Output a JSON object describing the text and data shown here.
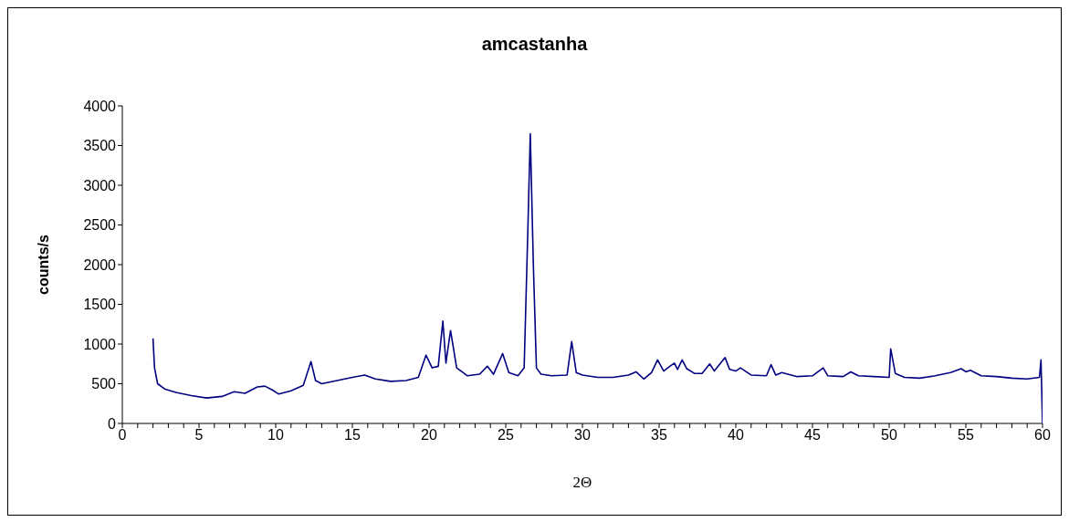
{
  "chart_data": {
    "type": "line",
    "title": "amcastanha",
    "xlabel": "2Θ",
    "ylabel": "counts/s",
    "x": [
      2.0,
      2.1,
      2.3,
      2.8,
      3.5,
      4.5,
      5.5,
      6.5,
      7.3,
      8,
      8.8,
      9.3,
      9.8,
      10.2,
      11,
      11.8,
      12.3,
      12.6,
      13,
      14,
      15,
      15.8,
      16.5,
      17.5,
      18.5,
      19.3,
      19.8,
      20.2,
      20.6,
      20.9,
      21.1,
      21.4,
      21.8,
      22.5,
      23.3,
      23.8,
      24.2,
      24.8,
      25.2,
      25.8,
      26.2,
      26.45,
      26.6,
      26.8,
      27,
      27.3,
      28,
      29,
      29.3,
      29.6,
      30,
      31,
      32,
      33,
      33.5,
      34,
      34.5,
      34.9,
      35.3,
      35.7,
      36,
      36.2,
      36.5,
      36.8,
      37.3,
      37.8,
      38.3,
      38.6,
      39.3,
      39.6,
      40,
      40.3,
      41,
      42,
      42.3,
      42.6,
      43,
      44,
      45,
      45.7,
      46,
      47,
      47.5,
      48,
      49,
      50,
      50.1,
      50.4,
      51,
      52,
      53,
      54,
      54.7,
      55,
      55.3,
      56,
      57,
      58,
      59,
      59.8,
      59.9,
      60
    ],
    "series": [
      {
        "color": "#000080",
        "values": [
          1070,
          700,
          500,
          430,
          390,
          350,
          320,
          340,
          400,
          380,
          460,
          470,
          420,
          370,
          410,
          480,
          780,
          540,
          500,
          540,
          580,
          610,
          560,
          530,
          540,
          580,
          860,
          700,
          720,
          1290,
          760,
          1170,
          700,
          600,
          620,
          720,
          620,
          880,
          640,
          600,
          700,
          2500,
          3650,
          2000,
          700,
          620,
          600,
          610,
          1030,
          640,
          610,
          580,
          580,
          610,
          650,
          560,
          640,
          800,
          660,
          720,
          760,
          680,
          800,
          690,
          630,
          630,
          750,
          660,
          830,
          680,
          660,
          700,
          610,
          600,
          740,
          610,
          640,
          590,
          600,
          700,
          600,
          590,
          650,
          600,
          590,
          580,
          940,
          630,
          580,
          570,
          600,
          640,
          690,
          650,
          670,
          600,
          590,
          570,
          560,
          580,
          800,
          0
        ]
      }
    ],
    "xlim": [
      0,
      60
    ],
    "xticks": [
      0,
      {
        "value": 1,
        "label": null
      },
      {
        "value": 2,
        "label": null
      },
      {
        "value": 3,
        "label": null
      },
      {
        "value": 4,
        "label": null
      },
      5,
      {
        "value": 6,
        "label": null
      },
      {
        "value": 7,
        "label": null
      },
      {
        "value": 8,
        "label": null
      },
      {
        "value": 9,
        "label": null
      },
      10,
      {
        "value": 11,
        "label": null
      },
      {
        "value": 12,
        "label": null
      },
      {
        "value": 13,
        "label": null
      },
      {
        "value": 14,
        "label": null
      },
      15,
      {
        "value": 16,
        "label": null
      },
      {
        "value": 17,
        "label": null
      },
      {
        "value": 18,
        "label": null
      },
      {
        "value": 19,
        "label": null
      },
      20,
      {
        "value": 21,
        "label": null
      },
      {
        "value": 22,
        "label": null
      },
      {
        "value": 23,
        "label": null
      },
      {
        "value": 24,
        "label": null
      },
      25,
      {
        "value": 26,
        "label": null
      },
      {
        "value": 27,
        "label": null
      },
      {
        "value": 28,
        "label": null
      },
      {
        "value": 29,
        "label": null
      },
      30,
      {
        "value": 31,
        "label": null
      },
      {
        "value": 32,
        "label": null
      },
      {
        "value": 33,
        "label": null
      },
      {
        "value": 34,
        "label": null
      },
      35,
      {
        "value": 36,
        "label": null
      },
      {
        "value": 37,
        "label": null
      },
      {
        "value": 38,
        "label": null
      },
      {
        "value": 39,
        "label": null
      },
      40,
      {
        "value": 41,
        "label": null
      },
      {
        "value": 42,
        "label": null
      },
      {
        "value": 43,
        "label": null
      },
      {
        "value": 44,
        "label": null
      },
      45,
      {
        "value": 46,
        "label": null
      },
      {
        "value": 47,
        "label": null
      },
      {
        "value": 48,
        "label": null
      },
      {
        "value": 49,
        "label": null
      },
      50,
      {
        "value": 51,
        "label": null
      },
      {
        "value": 52,
        "label": null
      },
      {
        "value": 53,
        "label": null
      },
      {
        "value": 54,
        "label": null
      },
      55,
      {
        "value": 56,
        "label": null
      },
      {
        "value": 57,
        "label": null
      },
      {
        "value": 58,
        "label": null
      },
      {
        "value": 59,
        "label": null
      },
      60
    ],
    "ylim": [
      0,
      4000
    ],
    "yticks": [
      0,
      500,
      1000,
      1500,
      2000,
      2500,
      3000,
      3500,
      4000
    ],
    "grid": false,
    "legend": false,
    "marker": "none",
    "line_style": "solid"
  }
}
